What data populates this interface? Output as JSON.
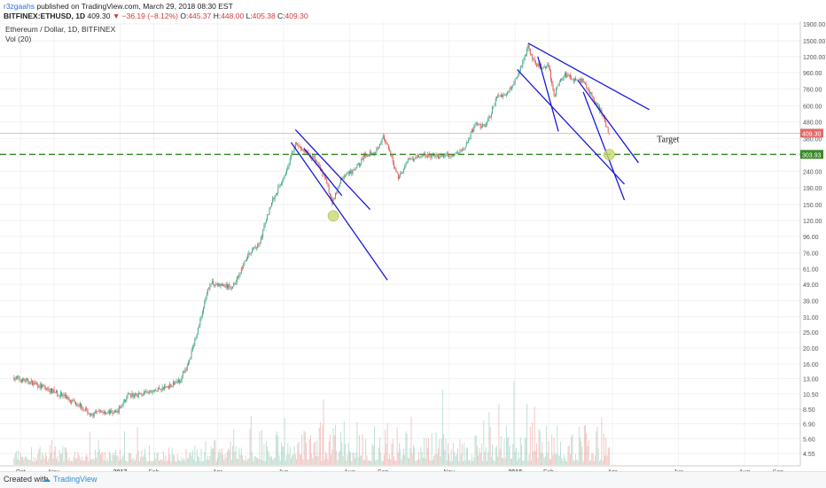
{
  "header": {
    "author": "r3zgaahs",
    "published": "published on TradingView.com, March 29, 2018 08:30 EST",
    "symbol": "BITFINEX:ETHUSD, 1D",
    "last": "409.30",
    "change": "−36.19 (−8.12%)",
    "o_label": "O:",
    "o": "445.37",
    "h_label": "H:",
    "h": "448.00",
    "l_label": "L:",
    "l": "405.38",
    "c_label": "C:",
    "c": "409.30"
  },
  "legend": {
    "symbol": "Ethereum / Dollar, 1D, BITFINEX",
    "volume": "Vol (20)"
  },
  "footer": {
    "created": "Created with",
    "brand": "TradingView"
  },
  "colors": {
    "up": "#3fa37f",
    "down": "#d9534f",
    "trendline": "#1a1adb",
    "target_line": "#3a8a2a",
    "price_label": "#e26b6b",
    "target_label": "#3a8a2a",
    "marker": "#c8d96a"
  },
  "chart_data": {
    "type": "candlestick",
    "scale": "log",
    "x_ticks": [
      "Oct",
      "Nov",
      "2017",
      "Feb",
      "Apr",
      "Jun",
      "Aug",
      "Sep",
      "Nov",
      "2018",
      "Feb",
      "Apr",
      "Jun",
      "Aug",
      "Sep"
    ],
    "y_ticks": [
      "1900.00",
      "1500.00",
      "1200.00",
      "960.00",
      "760.00",
      "600.00",
      "480.00",
      "380.00",
      "300.00",
      "240.00",
      "190.00",
      "150.00",
      "120.00",
      "96.00",
      "76.00",
      "61.00",
      "49.00",
      "39.00",
      "31.00",
      "25.00",
      "20.00",
      "16.00",
      "13.00",
      "10.50",
      "8.50",
      "6.90",
      "5.60",
      "4.55"
    ],
    "last_price_label": "409.30",
    "target_price_label": "303.93",
    "annotation": "Target",
    "price_path": [
      {
        "date": "2016-09-25",
        "price": 13.2
      },
      {
        "date": "2016-10-10",
        "price": 12.4
      },
      {
        "date": "2016-10-25",
        "price": 11.3
      },
      {
        "date": "2016-11-10",
        "price": 10.2
      },
      {
        "date": "2016-11-25",
        "price": 9.0
      },
      {
        "date": "2016-12-05",
        "price": 7.8
      },
      {
        "date": "2016-12-15",
        "price": 8.2
      },
      {
        "date": "2016-12-28",
        "price": 8.0
      },
      {
        "date": "2017-01-08",
        "price": 10.2
      },
      {
        "date": "2017-01-25",
        "price": 10.6
      },
      {
        "date": "2017-02-10",
        "price": 11.4
      },
      {
        "date": "2017-02-25",
        "price": 12.6
      },
      {
        "date": "2017-03-05",
        "price": 16
      },
      {
        "date": "2017-03-15",
        "price": 28
      },
      {
        "date": "2017-03-25",
        "price": 50
      },
      {
        "date": "2017-04-05",
        "price": 48
      },
      {
        "date": "2017-04-15",
        "price": 47
      },
      {
        "date": "2017-04-30",
        "price": 75
      },
      {
        "date": "2017-05-10",
        "price": 88
      },
      {
        "date": "2017-05-20",
        "price": 150
      },
      {
        "date": "2017-06-01",
        "price": 220
      },
      {
        "date": "2017-06-12",
        "price": 350
      },
      {
        "date": "2017-06-20",
        "price": 320
      },
      {
        "date": "2017-07-01",
        "price": 280
      },
      {
        "date": "2017-07-10",
        "price": 210
      },
      {
        "date": "2017-07-16",
        "price": 155
      },
      {
        "date": "2017-07-25",
        "price": 220
      },
      {
        "date": "2017-08-05",
        "price": 240
      },
      {
        "date": "2017-08-15",
        "price": 300
      },
      {
        "date": "2017-08-25",
        "price": 320
      },
      {
        "date": "2017-09-01",
        "price": 385
      },
      {
        "date": "2017-09-08",
        "price": 300
      },
      {
        "date": "2017-09-15",
        "price": 220
      },
      {
        "date": "2017-09-25",
        "price": 285
      },
      {
        "date": "2017-10-10",
        "price": 300
      },
      {
        "date": "2017-10-25",
        "price": 295
      },
      {
        "date": "2017-11-05",
        "price": 300
      },
      {
        "date": "2017-11-15",
        "price": 330
      },
      {
        "date": "2017-11-25",
        "price": 460
      },
      {
        "date": "2017-12-05",
        "price": 450
      },
      {
        "date": "2017-12-15",
        "price": 680
      },
      {
        "date": "2017-12-25",
        "price": 720
      },
      {
        "date": "2018-01-05",
        "price": 980
      },
      {
        "date": "2018-01-13",
        "price": 1390
      },
      {
        "date": "2018-01-20",
        "price": 1050
      },
      {
        "date": "2018-02-01",
        "price": 1050
      },
      {
        "date": "2018-02-06",
        "price": 700
      },
      {
        "date": "2018-02-15",
        "price": 940
      },
      {
        "date": "2018-02-25",
        "price": 860
      },
      {
        "date": "2018-03-05",
        "price": 860
      },
      {
        "date": "2018-03-15",
        "price": 650
      },
      {
        "date": "2018-03-22",
        "price": 540
      },
      {
        "date": "2018-03-29",
        "price": 409
      }
    ],
    "trendlines": [
      {
        "from": [
          "2017-06-12",
          430
        ],
        "to": [
          "2017-08-20",
          140
        ]
      },
      {
        "from": [
          "2017-06-08",
          360
        ],
        "to": [
          "2017-09-05",
          52
        ]
      },
      {
        "from": [
          "2017-06-20",
          330
        ],
        "to": [
          "2017-07-25",
          170
        ]
      },
      {
        "from": [
          "2018-01-13",
          1450
        ],
        "to": [
          "2018-05-05",
          570
        ]
      },
      {
        "from": [
          "2018-01-03",
          1000
        ],
        "to": [
          "2018-04-12",
          200
        ]
      },
      {
        "from": [
          "2018-01-22",
          1200
        ],
        "to": [
          "2018-02-10",
          420
        ]
      },
      {
        "from": [
          "2018-02-28",
          860
        ],
        "to": [
          "2018-04-25",
          270
        ]
      },
      {
        "from": [
          "2018-03-05",
          730
        ],
        "to": [
          "2018-04-12",
          160
        ]
      }
    ]
  }
}
